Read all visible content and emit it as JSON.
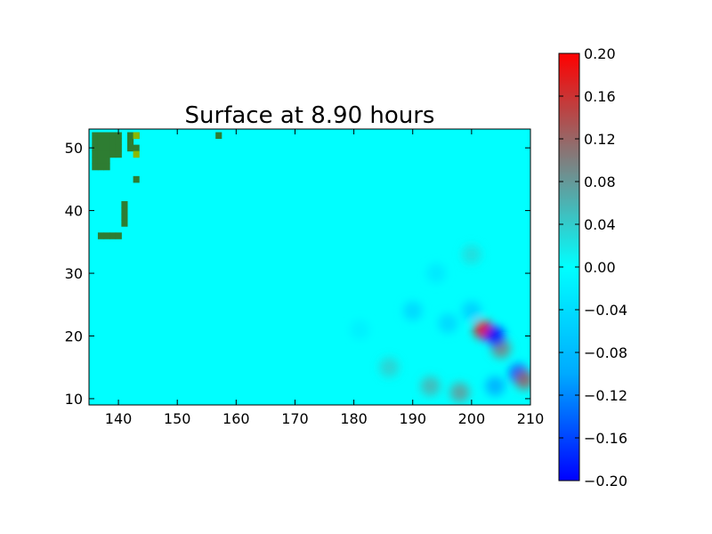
{
  "chart_data": {
    "type": "heatmap",
    "title": "Surface at 8.90 hours",
    "xlabel": "",
    "ylabel": "",
    "xlim": [
      135,
      210
    ],
    "ylim": [
      9,
      53
    ],
    "xticks": [
      "140",
      "150",
      "160",
      "170",
      "180",
      "190",
      "200",
      "210"
    ],
    "yticks": [
      "10",
      "20",
      "30",
      "40",
      "50"
    ],
    "colorbar": {
      "min": -0.2,
      "max": 0.2,
      "ticks": [
        "0.20",
        "0.16",
        "0.12",
        "0.08",
        "0.04",
        "0.00",
        "−0.04",
        "−0.08",
        "−0.12",
        "−0.16",
        "−0.20"
      ],
      "colors": {
        "low": "#0000ff",
        "mid_low": "#00aaff",
        "mid": "#00ffff",
        "mid_high": "#7f7f7f",
        "high": "#ff0000"
      }
    },
    "background_value": 0.0,
    "land_color": "#2e7d32",
    "land_highlight_color": "#8ab800",
    "land_cells": [
      [
        136,
        52
      ],
      [
        137,
        52
      ],
      [
        138,
        52
      ],
      [
        139,
        52
      ],
      [
        140,
        52
      ],
      [
        136,
        51
      ],
      [
        137,
        51
      ],
      [
        138,
        51
      ],
      [
        139,
        51
      ],
      [
        140,
        51
      ],
      [
        136,
        50
      ],
      [
        137,
        50
      ],
      [
        138,
        50
      ],
      [
        139,
        50
      ],
      [
        140,
        50
      ],
      [
        136,
        49
      ],
      [
        137,
        49
      ],
      [
        138,
        49
      ],
      [
        139,
        49
      ],
      [
        140,
        49
      ],
      [
        136,
        48
      ],
      [
        137,
        48
      ],
      [
        138,
        48
      ],
      [
        136,
        47
      ],
      [
        137,
        47
      ],
      [
        138,
        47
      ],
      [
        142,
        52
      ],
      [
        143,
        52
      ],
      [
        142,
        51
      ],
      [
        142,
        50
      ],
      [
        143,
        50
      ],
      [
        143,
        45
      ],
      [
        141,
        41
      ],
      [
        141,
        40
      ],
      [
        141,
        39
      ],
      [
        141,
        38
      ],
      [
        137,
        36
      ],
      [
        138,
        36
      ],
      [
        139,
        36
      ],
      [
        140,
        36
      ],
      [
        157,
        52
      ]
    ],
    "land_highlight_cells": [
      [
        143,
        52
      ],
      [
        143,
        49
      ]
    ],
    "anomalies": [
      {
        "x": 204,
        "y": 12,
        "value": -0.1
      },
      {
        "x": 208,
        "y": 14,
        "value": -0.16
      },
      {
        "x": 209,
        "y": 13,
        "value": 0.12
      },
      {
        "x": 205,
        "y": 18,
        "value": 0.1
      },
      {
        "x": 202,
        "y": 21,
        "value": 0.2
      },
      {
        "x": 204,
        "y": 20,
        "value": -0.2
      },
      {
        "x": 200,
        "y": 24,
        "value": -0.06
      },
      {
        "x": 196,
        "y": 22,
        "value": -0.05
      },
      {
        "x": 190,
        "y": 24,
        "value": -0.05
      },
      {
        "x": 193,
        "y": 12,
        "value": 0.06
      },
      {
        "x": 186,
        "y": 15,
        "value": 0.04
      },
      {
        "x": 198,
        "y": 11,
        "value": 0.08
      },
      {
        "x": 194,
        "y": 30,
        "value": -0.03
      },
      {
        "x": 200,
        "y": 33,
        "value": 0.03
      },
      {
        "x": 181,
        "y": 21,
        "value": -0.02
      }
    ]
  }
}
